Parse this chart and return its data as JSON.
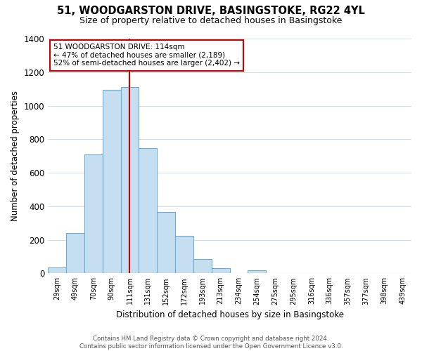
{
  "title": "51, WOODGARSTON DRIVE, BASINGSTOKE, RG22 4YL",
  "subtitle": "Size of property relative to detached houses in Basingstoke",
  "xlabel": "Distribution of detached houses by size in Basingstoke",
  "ylabel": "Number of detached properties",
  "bin_labels": [
    "29sqm",
    "49sqm",
    "70sqm",
    "90sqm",
    "111sqm",
    "131sqm",
    "152sqm",
    "172sqm",
    "193sqm",
    "213sqm",
    "234sqm",
    "254sqm",
    "275sqm",
    "295sqm",
    "316sqm",
    "336sqm",
    "357sqm",
    "377sqm",
    "398sqm",
    "439sqm"
  ],
  "bar_heights": [
    35,
    240,
    710,
    1095,
    1110,
    745,
    365,
    225,
    85,
    30,
    0,
    20,
    0,
    0,
    0,
    0,
    0,
    0,
    0,
    0
  ],
  "bar_color": "#c5dff0",
  "bar_edge_color": "#6aadd5",
  "property_line_x": 4.5,
  "property_line_label": "51 WOODGARSTON DRIVE: 114sqm",
  "annotation_smaller": "← 47% of detached houses are smaller (2,189)",
  "annotation_larger": "52% of semi-detached houses are larger (2,402) →",
  "annotation_box_color": "#ffffff",
  "annotation_box_edge_color": "#cc0000",
  "vline_color": "#cc0000",
  "ylim": [
    0,
    1400
  ],
  "yticks": [
    0,
    200,
    400,
    600,
    800,
    1000,
    1200,
    1400
  ],
  "footer_line1": "Contains HM Land Registry data © Crown copyright and database right 2024.",
  "footer_line2": "Contains public sector information licensed under the Open Government Licence v3.0.",
  "background_color": "#ffffff",
  "grid_color": "#d0dde8"
}
